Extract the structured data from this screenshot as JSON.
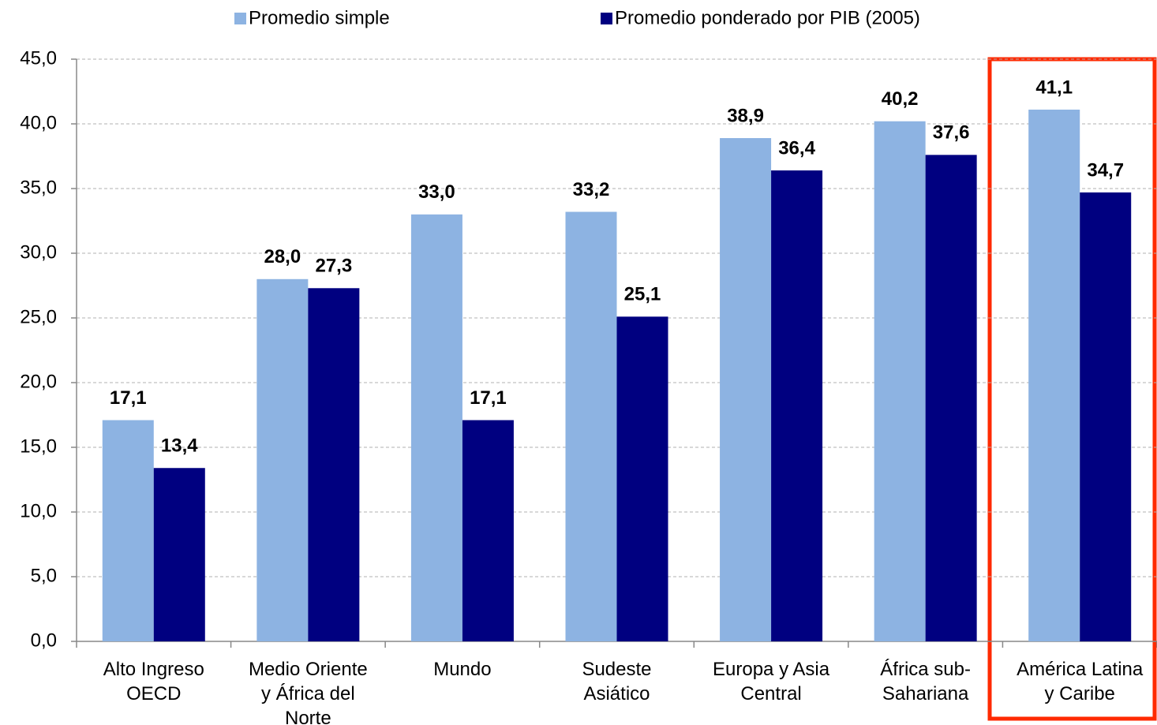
{
  "chart_data": {
    "type": "bar",
    "categories": [
      [
        "Alto Ingreso",
        "OECD"
      ],
      [
        "Medio Oriente",
        "y África del",
        "Norte"
      ],
      [
        "Mundo"
      ],
      [
        "Sudeste",
        "Asiático"
      ],
      [
        "Europa y Asia",
        "Central"
      ],
      [
        "África sub-",
        "Sahariana"
      ],
      [
        "América Latina",
        "y Caribe"
      ]
    ],
    "series": [
      {
        "name": "Promedio simple",
        "color": "#8db3e2",
        "values": [
          17.1,
          28.0,
          33.0,
          33.2,
          38.9,
          40.2,
          41.1
        ],
        "value_labels": [
          "17,1",
          "28,0",
          "33,0",
          "33,2",
          "38,9",
          "40,2",
          "41,1"
        ]
      },
      {
        "name": "Promedio ponderado por PIB (2005)",
        "color": "#000080",
        "values": [
          13.4,
          27.3,
          17.1,
          25.1,
          36.4,
          37.6,
          34.7
        ],
        "value_labels": [
          "13,4",
          "27,3",
          "17,1",
          "25,1",
          "36,4",
          "37,6",
          "34,7"
        ]
      }
    ],
    "ylim": [
      0,
      45
    ],
    "yticks": [
      {
        "value": 0,
        "label": "0,0"
      },
      {
        "value": 5,
        "label": "5,0"
      },
      {
        "value": 10,
        "label": "10,0"
      },
      {
        "value": 15,
        "label": "15,0"
      },
      {
        "value": 20,
        "label": "20,0"
      },
      {
        "value": 25,
        "label": "25,0"
      },
      {
        "value": 30,
        "label": "30,0"
      },
      {
        "value": 35,
        "label": "35,0"
      },
      {
        "value": 40,
        "label": "40,0"
      },
      {
        "value": 45,
        "label": "45,0"
      }
    ],
    "grid": true,
    "legend": "top"
  }
}
